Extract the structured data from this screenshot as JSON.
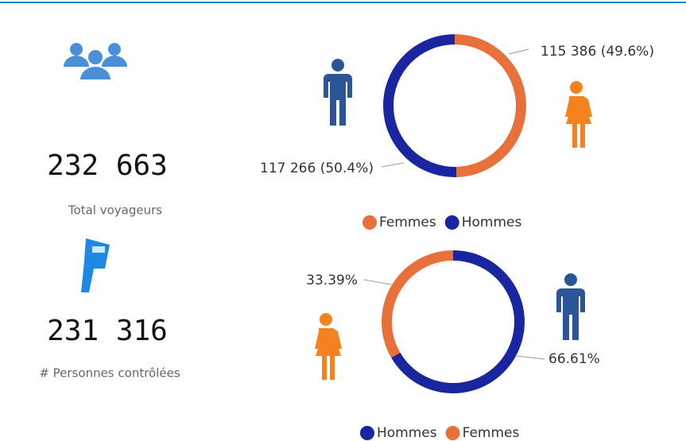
{
  "kpis": [
    {
      "value": "232 663",
      "label": "Total voyageurs"
    },
    {
      "value": "231 316",
      "label": "# Personnes contrôlées"
    }
  ],
  "chart_data": [
    {
      "type": "pie",
      "categories": [
        "Femmes",
        "Hommes"
      ],
      "values": [
        115386,
        117266
      ],
      "value_labels": [
        "115 386 (49.6%)",
        "117 266 (50.4%)"
      ],
      "colors": [
        "#e8703a",
        "#1a25a0"
      ]
    },
    {
      "type": "pie",
      "categories": [
        "Hommes",
        "Femmes"
      ],
      "values": [
        66.61,
        33.39
      ],
      "value_labels": [
        "66.61%",
        "33.39%"
      ],
      "colors": [
        "#1a25a0",
        "#e8703a"
      ]
    }
  ]
}
